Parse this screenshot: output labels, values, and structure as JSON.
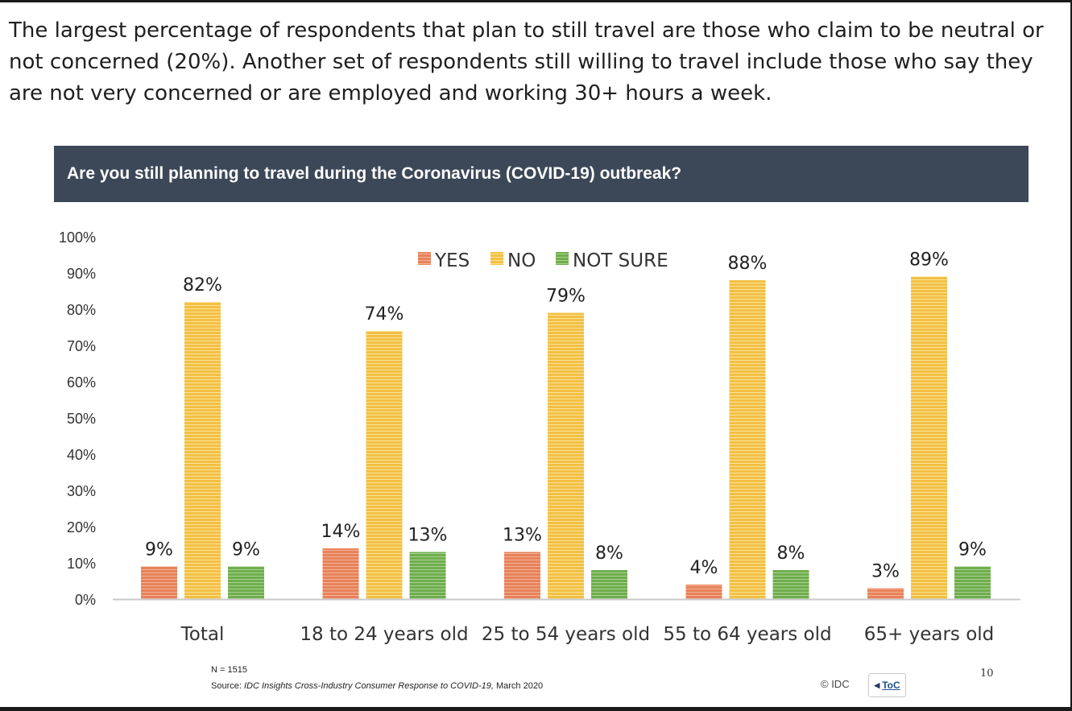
{
  "intro_text": "The largest percentage of respondents that plan to still travel are those who claim to be neutral or not concerned (20%). Another set of respondents still willing to travel include those who say they are not very concerned or are employed and working 30+ hours a week.",
  "chart_data": {
    "type": "bar",
    "title": "Are you still planning to travel during the Coronavirus (COVID-19) outbreak?",
    "categories": [
      "Total",
      "18 to 24 years old",
      "25 to 54 years old",
      "55 to 64 years old",
      "65+ years old"
    ],
    "series": [
      {
        "name": "YES",
        "values": [
          9,
          14,
          13,
          4,
          3
        ],
        "labels": [
          "9%",
          "14%",
          "13%",
          "4%",
          "3%"
        ],
        "color": "#e8825a",
        "stripe": "#f2b294"
      },
      {
        "name": "NO",
        "values": [
          82,
          74,
          79,
          88,
          89
        ],
        "labels": [
          "82%",
          "74%",
          "79%",
          "88%",
          "89%"
        ],
        "color": "#f3c044",
        "stripe": "#fbe198"
      },
      {
        "name": "NOT SURE",
        "values": [
          9,
          13,
          8,
          8,
          9
        ],
        "labels": [
          "9%",
          "13%",
          "8%",
          "8%",
          "9%"
        ],
        "color": "#6fae4e",
        "stripe": "#a9d08f"
      }
    ],
    "y_ticks": [
      "0%",
      "10%",
      "20%",
      "30%",
      "40%",
      "50%",
      "60%",
      "70%",
      "80%",
      "90%",
      "100%"
    ],
    "ylim": [
      0,
      100
    ],
    "xlabel": "",
    "ylabel": "",
    "legend_position": "top-center",
    "grid": false
  },
  "footer": {
    "sample_size": "N = 1515",
    "source_label": "Source: ",
    "source_italic": "IDC Insights Cross-Industry Consumer Response to COVID-19,",
    "source_date": " March 2020",
    "copyright": "© IDC",
    "toc_label": "ToC",
    "page_number": "10"
  }
}
